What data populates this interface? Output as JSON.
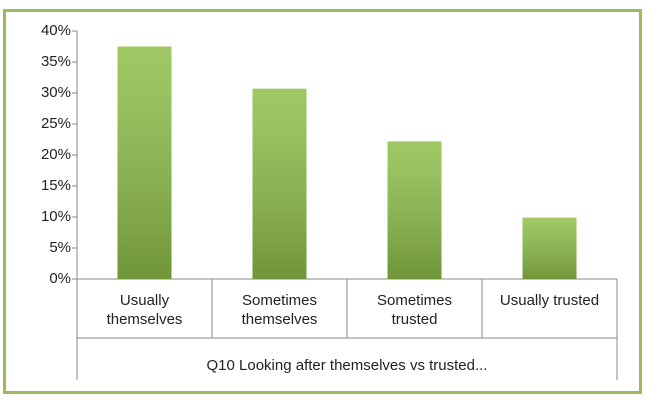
{
  "chart_data": {
    "type": "bar",
    "categories": [
      "Usually themselves",
      "Sometimes themselves",
      "Sometimes trusted",
      "Usually trusted"
    ],
    "values": [
      37.5,
      30.7,
      22.2,
      9.9
    ],
    "color": "#8fbf4a",
    "x_label": "Q10 Looking after themselves vs trusted...",
    "ylim": [
      0,
      40
    ],
    "yticks": [
      {
        "value": 0,
        "label": "0%"
      },
      {
        "value": 5,
        "label": "5%"
      },
      {
        "value": 10,
        "label": "10%"
      },
      {
        "value": 15,
        "label": "15%"
      },
      {
        "value": 20,
        "label": "20%"
      },
      {
        "value": 25,
        "label": "25%"
      },
      {
        "value": 30,
        "label": "30%"
      },
      {
        "value": 35,
        "label": "35%"
      },
      {
        "value": 40,
        "label": "40%"
      }
    ],
    "grid": false
  }
}
